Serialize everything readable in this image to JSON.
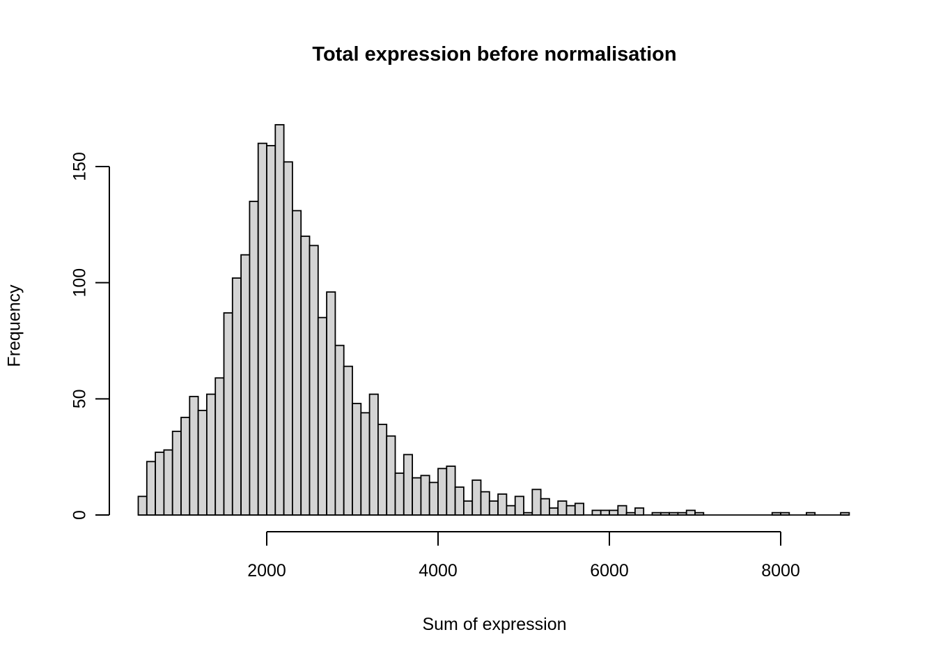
{
  "title": "Total expression before normalisation",
  "chart_data": {
    "type": "bar",
    "subtype": "histogram",
    "title": "Total expression before normalisation",
    "xlabel": "Sum of expression",
    "ylabel": "Frequency",
    "bin_start": 500,
    "bin_width": 100,
    "counts": [
      8,
      23,
      27,
      28,
      36,
      42,
      51,
      45,
      52,
      59,
      87,
      102,
      112,
      135,
      160,
      159,
      168,
      152,
      131,
      120,
      116,
      85,
      96,
      73,
      64,
      48,
      44,
      52,
      39,
      34,
      18,
      26,
      16,
      17,
      14,
      20,
      21,
      12,
      6,
      15,
      10,
      6,
      9,
      4,
      8,
      1,
      11,
      7,
      3,
      6,
      4,
      5,
      0,
      2,
      2,
      2,
      4,
      1,
      3,
      0,
      1,
      1,
      1,
      1,
      2,
      1,
      0,
      0,
      0,
      0,
      0,
      0,
      0,
      0,
      1,
      1,
      0,
      0,
      1,
      0,
      0,
      0,
      1
    ],
    "x_ticks": [
      2000,
      4000,
      6000,
      8000
    ],
    "y_ticks": [
      0,
      50,
      100,
      150
    ],
    "xlim": [
      500,
      8800
    ],
    "ylim": [
      0,
      168
    ],
    "grid": "off",
    "legend": "none",
    "bar_fill": "#d4d4d4",
    "bar_stroke": "#000000",
    "axis_color": "#000000"
  }
}
